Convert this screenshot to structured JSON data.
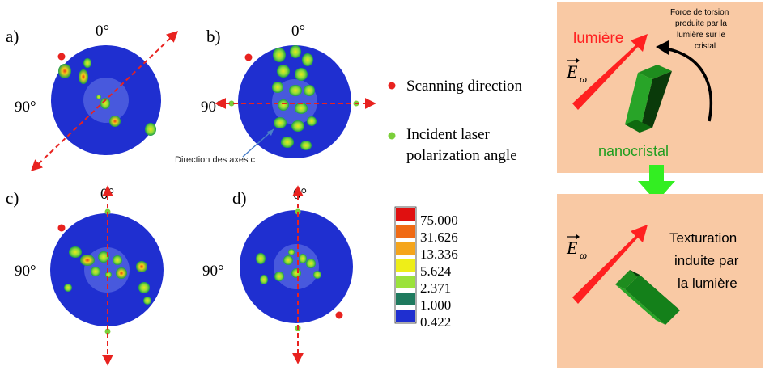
{
  "panels": [
    {
      "label": "a)",
      "angle_top": "0°",
      "angle_left": "90°"
    },
    {
      "label": "b)",
      "angle_top": "0°",
      "angle_left": "90°"
    },
    {
      "label": "c)",
      "angle_top": "0°",
      "angle_left": "90°"
    },
    {
      "label": "d)",
      "angle_top": "0°",
      "angle_left": "90°"
    }
  ],
  "legend": {
    "scanning": "Scanning direction",
    "incident_line1": "Incident  laser",
    "incident_line2": "polarization angle",
    "axes_c": "Direction des axes c",
    "colors": {
      "scanning": "#e8221f",
      "incident": "#7bcf3a"
    }
  },
  "colorbar": {
    "values": [
      "75.000",
      "31.626",
      "13.336",
      "5.624",
      "2.371",
      "1.000",
      "0.422"
    ],
    "colors": [
      "#e01010",
      "#f06a14",
      "#f5a51c",
      "#eeee18",
      "#9be23b",
      "#1f7a5e",
      "#1f2fd0"
    ]
  },
  "schematic": {
    "top": {
      "light": "lumière",
      "field": "E",
      "field_sub": "ω",
      "torsion_line1": "Force de torsion",
      "torsion_line2": "produite par la",
      "torsion_line3": "lumière sur le",
      "torsion_line4": "cristal",
      "crystal": "nanocristal"
    },
    "bottom": {
      "field": "E",
      "field_sub": "ω",
      "text_line1": "Texturation",
      "text_line2": "induite par",
      "text_line3": "la lumière"
    },
    "colors": {
      "box": "#f9c9a4",
      "arrow": "#ff2020",
      "crystal": "#1a9a1a",
      "down_arrow": "#33ee22"
    }
  }
}
